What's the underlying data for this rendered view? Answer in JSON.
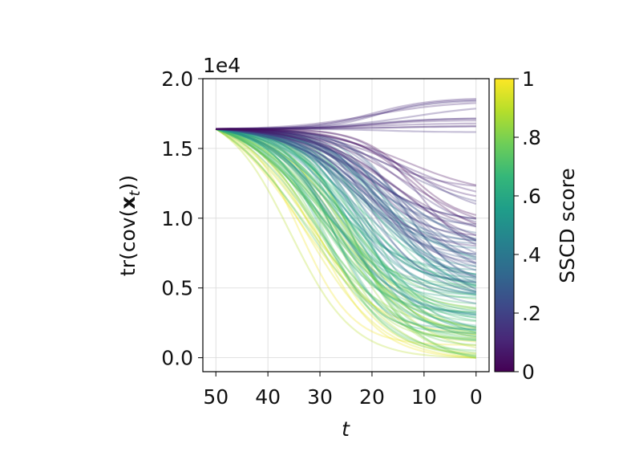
{
  "chart_data": {
    "type": "line",
    "xlabel": "t",
    "ylabel": "tr(cov(x_t))",
    "ylabel_parts": {
      "prefix": "tr(cov(",
      "bold": "x",
      "sub": "t",
      "suffix": "))"
    },
    "y_offset_text": "1e4",
    "xlim": [
      52.5,
      -2.5
    ],
    "ylim": [
      -0.1,
      2.0
    ],
    "x_ticks": [
      50,
      40,
      30,
      20,
      10,
      0
    ],
    "x_tick_labels": [
      "50",
      "40",
      "30",
      "20",
      "10",
      "0"
    ],
    "y_ticks": [
      0.0,
      0.5,
      1.0,
      1.5,
      2.0
    ],
    "y_tick_labels": [
      "0.0",
      "0.5",
      "1.0",
      "1.5",
      "2.0"
    ],
    "grid": true,
    "curve_start": {
      "t": 50,
      "value": 1.64
    },
    "curve_count": 140,
    "line_alpha": 0.2,
    "colorbar": {
      "label": "SSCD score",
      "range": [
        0,
        1
      ],
      "ticks": [
        0,
        0.2,
        0.4,
        0.6,
        0.8,
        1
      ],
      "tick_labels": [
        "0",
        ".2",
        ".4",
        ".6",
        ".8",
        "1"
      ],
      "colormap": "viridis",
      "colors": [
        "#440154",
        "#482878",
        "#3e4989",
        "#31688e",
        "#26828e",
        "#1f9e89",
        "#35b779",
        "#6ece58",
        "#b5de2b",
        "#fde725"
      ]
    }
  }
}
